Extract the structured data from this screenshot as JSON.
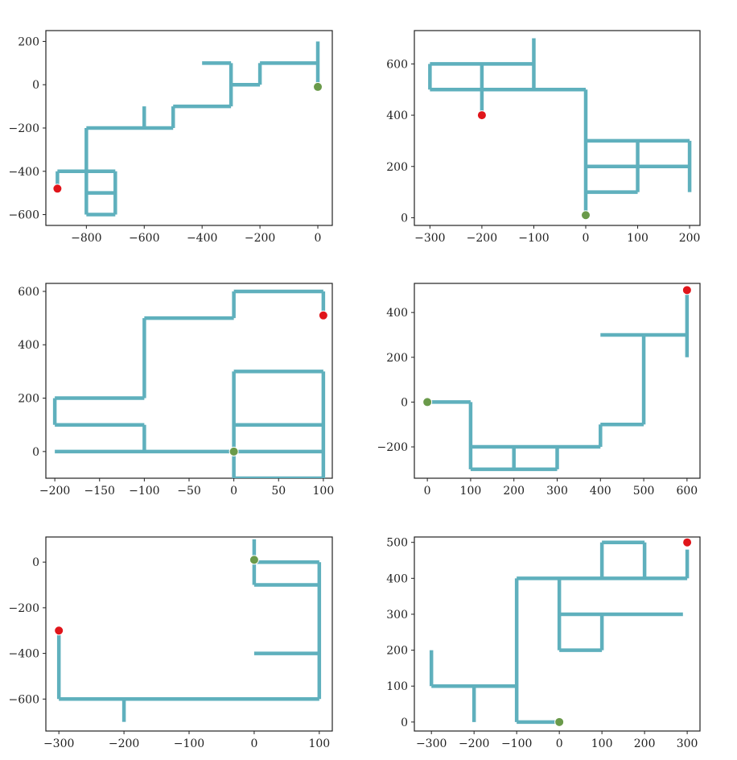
{
  "colors": {
    "path": "#5fb0bd",
    "start": "#6a9a4a",
    "end": "#e0151b",
    "frame": "#222222"
  },
  "chart_data": [
    {
      "type": "line",
      "xlim": [
        -940,
        50
      ],
      "ylim": [
        -650,
        250
      ],
      "xticks": [
        -800,
        -600,
        -400,
        -200,
        0
      ],
      "xtick_labels": [
        "−800",
        "−600",
        "−400",
        "−200",
        "0"
      ],
      "yticks": [
        -600,
        -400,
        -200,
        0,
        200
      ],
      "ytick_labels": [
        "−600",
        "−400",
        "−200",
        "0",
        "200"
      ],
      "start": [
        0,
        -10
      ],
      "end": [
        -900,
        -480
      ],
      "segments": [
        [
          [
            0,
            200
          ],
          [
            0,
            -10
          ]
        ],
        [
          [
            0,
            100
          ],
          [
            -200,
            100
          ]
        ],
        [
          [
            -200,
            100
          ],
          [
            -200,
            0
          ]
        ],
        [
          [
            -200,
            0
          ],
          [
            -300,
            0
          ]
        ],
        [
          [
            -300,
            100
          ],
          [
            -300,
            -100
          ]
        ],
        [
          [
            -300,
            100
          ],
          [
            -400,
            100
          ]
        ],
        [
          [
            -300,
            -100
          ],
          [
            -500,
            -100
          ]
        ],
        [
          [
            -500,
            -100
          ],
          [
            -500,
            -200
          ]
        ],
        [
          [
            -500,
            -200
          ],
          [
            -800,
            -200
          ]
        ],
        [
          [
            -600,
            -100
          ],
          [
            -600,
            -200
          ]
        ],
        [
          [
            -800,
            -200
          ],
          [
            -800,
            -600
          ]
        ],
        [
          [
            -800,
            -400
          ],
          [
            -900,
            -400
          ]
        ],
        [
          [
            -900,
            -400
          ],
          [
            -900,
            -480
          ]
        ],
        [
          [
            -800,
            -400
          ],
          [
            -700,
            -400
          ]
        ],
        [
          [
            -700,
            -400
          ],
          [
            -700,
            -600
          ]
        ],
        [
          [
            -700,
            -600
          ],
          [
            -800,
            -600
          ]
        ],
        [
          [
            -800,
            -500
          ],
          [
            -700,
            -500
          ]
        ]
      ]
    },
    {
      "type": "line",
      "xlim": [
        -330,
        220
      ],
      "ylim": [
        -30,
        730
      ],
      "xticks": [
        -300,
        -200,
        -100,
        0,
        100,
        200
      ],
      "xtick_labels": [
        "−300",
        "−200",
        "−100",
        "0",
        "100",
        "200"
      ],
      "yticks": [
        0,
        200,
        400,
        600
      ],
      "ytick_labels": [
        "0",
        "200",
        "400",
        "600"
      ],
      "start": [
        0,
        10
      ],
      "end": [
        -200,
        400
      ],
      "segments": [
        [
          [
            0,
            10
          ],
          [
            0,
            500
          ]
        ],
        [
          [
            0,
            500
          ],
          [
            -300,
            500
          ]
        ],
        [
          [
            -300,
            500
          ],
          [
            -300,
            600
          ]
        ],
        [
          [
            -300,
            600
          ],
          [
            -100,
            600
          ]
        ],
        [
          [
            -100,
            500
          ],
          [
            -100,
            700
          ]
        ],
        [
          [
            -200,
            600
          ],
          [
            -200,
            400
          ]
        ],
        [
          [
            0,
            300
          ],
          [
            200,
            300
          ]
        ],
        [
          [
            200,
            300
          ],
          [
            200,
            100
          ]
        ],
        [
          [
            0,
            200
          ],
          [
            200,
            200
          ]
        ],
        [
          [
            100,
            300
          ],
          [
            100,
            100
          ]
        ],
        [
          [
            100,
            100
          ],
          [
            0,
            100
          ]
        ]
      ]
    },
    {
      "type": "line",
      "xlim": [
        -210,
        110
      ],
      "ylim": [
        -100,
        630
      ],
      "xticks": [
        -200,
        -150,
        -100,
        -50,
        0,
        50,
        100
      ],
      "xtick_labels": [
        "−200",
        "−150",
        "−100",
        "−50",
        "0",
        "50",
        "100"
      ],
      "yticks": [
        0,
        200,
        400,
        600
      ],
      "ytick_labels": [
        "0",
        "200",
        "400",
        "600"
      ],
      "start": [
        0,
        0
      ],
      "end": [
        100,
        510
      ],
      "segments": [
        [
          [
            -200,
            0
          ],
          [
            100,
            0
          ]
        ],
        [
          [
            -100,
            0
          ],
          [
            -100,
            100
          ]
        ],
        [
          [
            -100,
            100
          ],
          [
            -200,
            100
          ]
        ],
        [
          [
            -200,
            100
          ],
          [
            -200,
            200
          ]
        ],
        [
          [
            -200,
            200
          ],
          [
            -100,
            200
          ]
        ],
        [
          [
            -100,
            200
          ],
          [
            -100,
            500
          ]
        ],
        [
          [
            -100,
            500
          ],
          [
            0,
            500
          ]
        ],
        [
          [
            0,
            500
          ],
          [
            0,
            600
          ]
        ],
        [
          [
            0,
            600
          ],
          [
            100,
            600
          ]
        ],
        [
          [
            100,
            600
          ],
          [
            100,
            510
          ]
        ],
        [
          [
            0,
            -100
          ],
          [
            0,
            300
          ]
        ],
        [
          [
            0,
            300
          ],
          [
            100,
            300
          ]
        ],
        [
          [
            100,
            300
          ],
          [
            100,
            -100
          ]
        ],
        [
          [
            100,
            -100
          ],
          [
            0,
            -100
          ]
        ],
        [
          [
            0,
            100
          ],
          [
            100,
            100
          ]
        ]
      ]
    },
    {
      "type": "line",
      "xlim": [
        -30,
        630
      ],
      "ylim": [
        -340,
        530
      ],
      "xticks": [
        0,
        100,
        200,
        300,
        400,
        500,
        600
      ],
      "xtick_labels": [
        "0",
        "100",
        "200",
        "300",
        "400",
        "500",
        "600"
      ],
      "yticks": [
        -200,
        0,
        200,
        400
      ],
      "ytick_labels": [
        "−200",
        "0",
        "200",
        "400"
      ],
      "start": [
        0,
        0
      ],
      "end": [
        600,
        500
      ],
      "segments": [
        [
          [
            0,
            0
          ],
          [
            100,
            0
          ]
        ],
        [
          [
            100,
            0
          ],
          [
            100,
            -300
          ]
        ],
        [
          [
            100,
            -300
          ],
          [
            300,
            -300
          ]
        ],
        [
          [
            300,
            -300
          ],
          [
            300,
            -200
          ]
        ],
        [
          [
            100,
            -200
          ],
          [
            400,
            -200
          ]
        ],
        [
          [
            200,
            -200
          ],
          [
            200,
            -300
          ]
        ],
        [
          [
            400,
            -200
          ],
          [
            400,
            -100
          ]
        ],
        [
          [
            400,
            -100
          ],
          [
            500,
            -100
          ]
        ],
        [
          [
            500,
            -100
          ],
          [
            500,
            300
          ]
        ],
        [
          [
            400,
            300
          ],
          [
            600,
            300
          ]
        ],
        [
          [
            600,
            200
          ],
          [
            600,
            480
          ]
        ]
      ]
    },
    {
      "type": "line",
      "xlim": [
        -320,
        120
      ],
      "ylim": [
        -740,
        110
      ],
      "xticks": [
        -300,
        -200,
        -100,
        0,
        100
      ],
      "xtick_labels": [
        "−300",
        "−200",
        "−100",
        "0",
        "100"
      ],
      "yticks": [
        -600,
        -400,
        -200,
        0
      ],
      "ytick_labels": [
        "−600",
        "−400",
        "−200",
        "0"
      ],
      "start": [
        0,
        10
      ],
      "end": [
        -300,
        -300
      ],
      "segments": [
        [
          [
            0,
            100
          ],
          [
            0,
            -100
          ]
        ],
        [
          [
            0,
            0
          ],
          [
            100,
            0
          ]
        ],
        [
          [
            0,
            -100
          ],
          [
            100,
            -100
          ]
        ],
        [
          [
            100,
            0
          ],
          [
            100,
            -600
          ]
        ],
        [
          [
            0,
            -400
          ],
          [
            100,
            -400
          ]
        ],
        [
          [
            100,
            -600
          ],
          [
            -300,
            -600
          ]
        ],
        [
          [
            -300,
            -600
          ],
          [
            -300,
            -320
          ]
        ],
        [
          [
            -200,
            -600
          ],
          [
            -200,
            -700
          ]
        ]
      ]
    },
    {
      "type": "line",
      "xlim": [
        -340,
        330
      ],
      "ylim": [
        -25,
        515
      ],
      "xticks": [
        -300,
        -200,
        -100,
        0,
        100,
        200,
        300
      ],
      "xtick_labels": [
        "−300",
        "−200",
        "−100",
        "0",
        "100",
        "200",
        "300"
      ],
      "yticks": [
        0,
        100,
        200,
        300,
        400,
        500
      ],
      "ytick_labels": [
        "0",
        "100",
        "200",
        "300",
        "400",
        "500"
      ],
      "start": [
        0,
        0
      ],
      "end": [
        300,
        500
      ],
      "segments": [
        [
          [
            0,
            0
          ],
          [
            -100,
            0
          ]
        ],
        [
          [
            -100,
            0
          ],
          [
            -100,
            400
          ]
        ],
        [
          [
            -100,
            100
          ],
          [
            -300,
            100
          ]
        ],
        [
          [
            -300,
            100
          ],
          [
            -300,
            200
          ]
        ],
        [
          [
            -200,
            100
          ],
          [
            -200,
            0
          ]
        ],
        [
          [
            -100,
            400
          ],
          [
            300,
            400
          ]
        ],
        [
          [
            300,
            400
          ],
          [
            300,
            480
          ]
        ],
        [
          [
            100,
            400
          ],
          [
            100,
            500
          ]
        ],
        [
          [
            100,
            500
          ],
          [
            200,
            500
          ]
        ],
        [
          [
            200,
            500
          ],
          [
            200,
            400
          ]
        ],
        [
          [
            0,
            400
          ],
          [
            0,
            200
          ]
        ],
        [
          [
            0,
            200
          ],
          [
            100,
            200
          ]
        ],
        [
          [
            100,
            200
          ],
          [
            100,
            300
          ]
        ],
        [
          [
            0,
            300
          ],
          [
            290,
            300
          ]
        ]
      ]
    }
  ]
}
